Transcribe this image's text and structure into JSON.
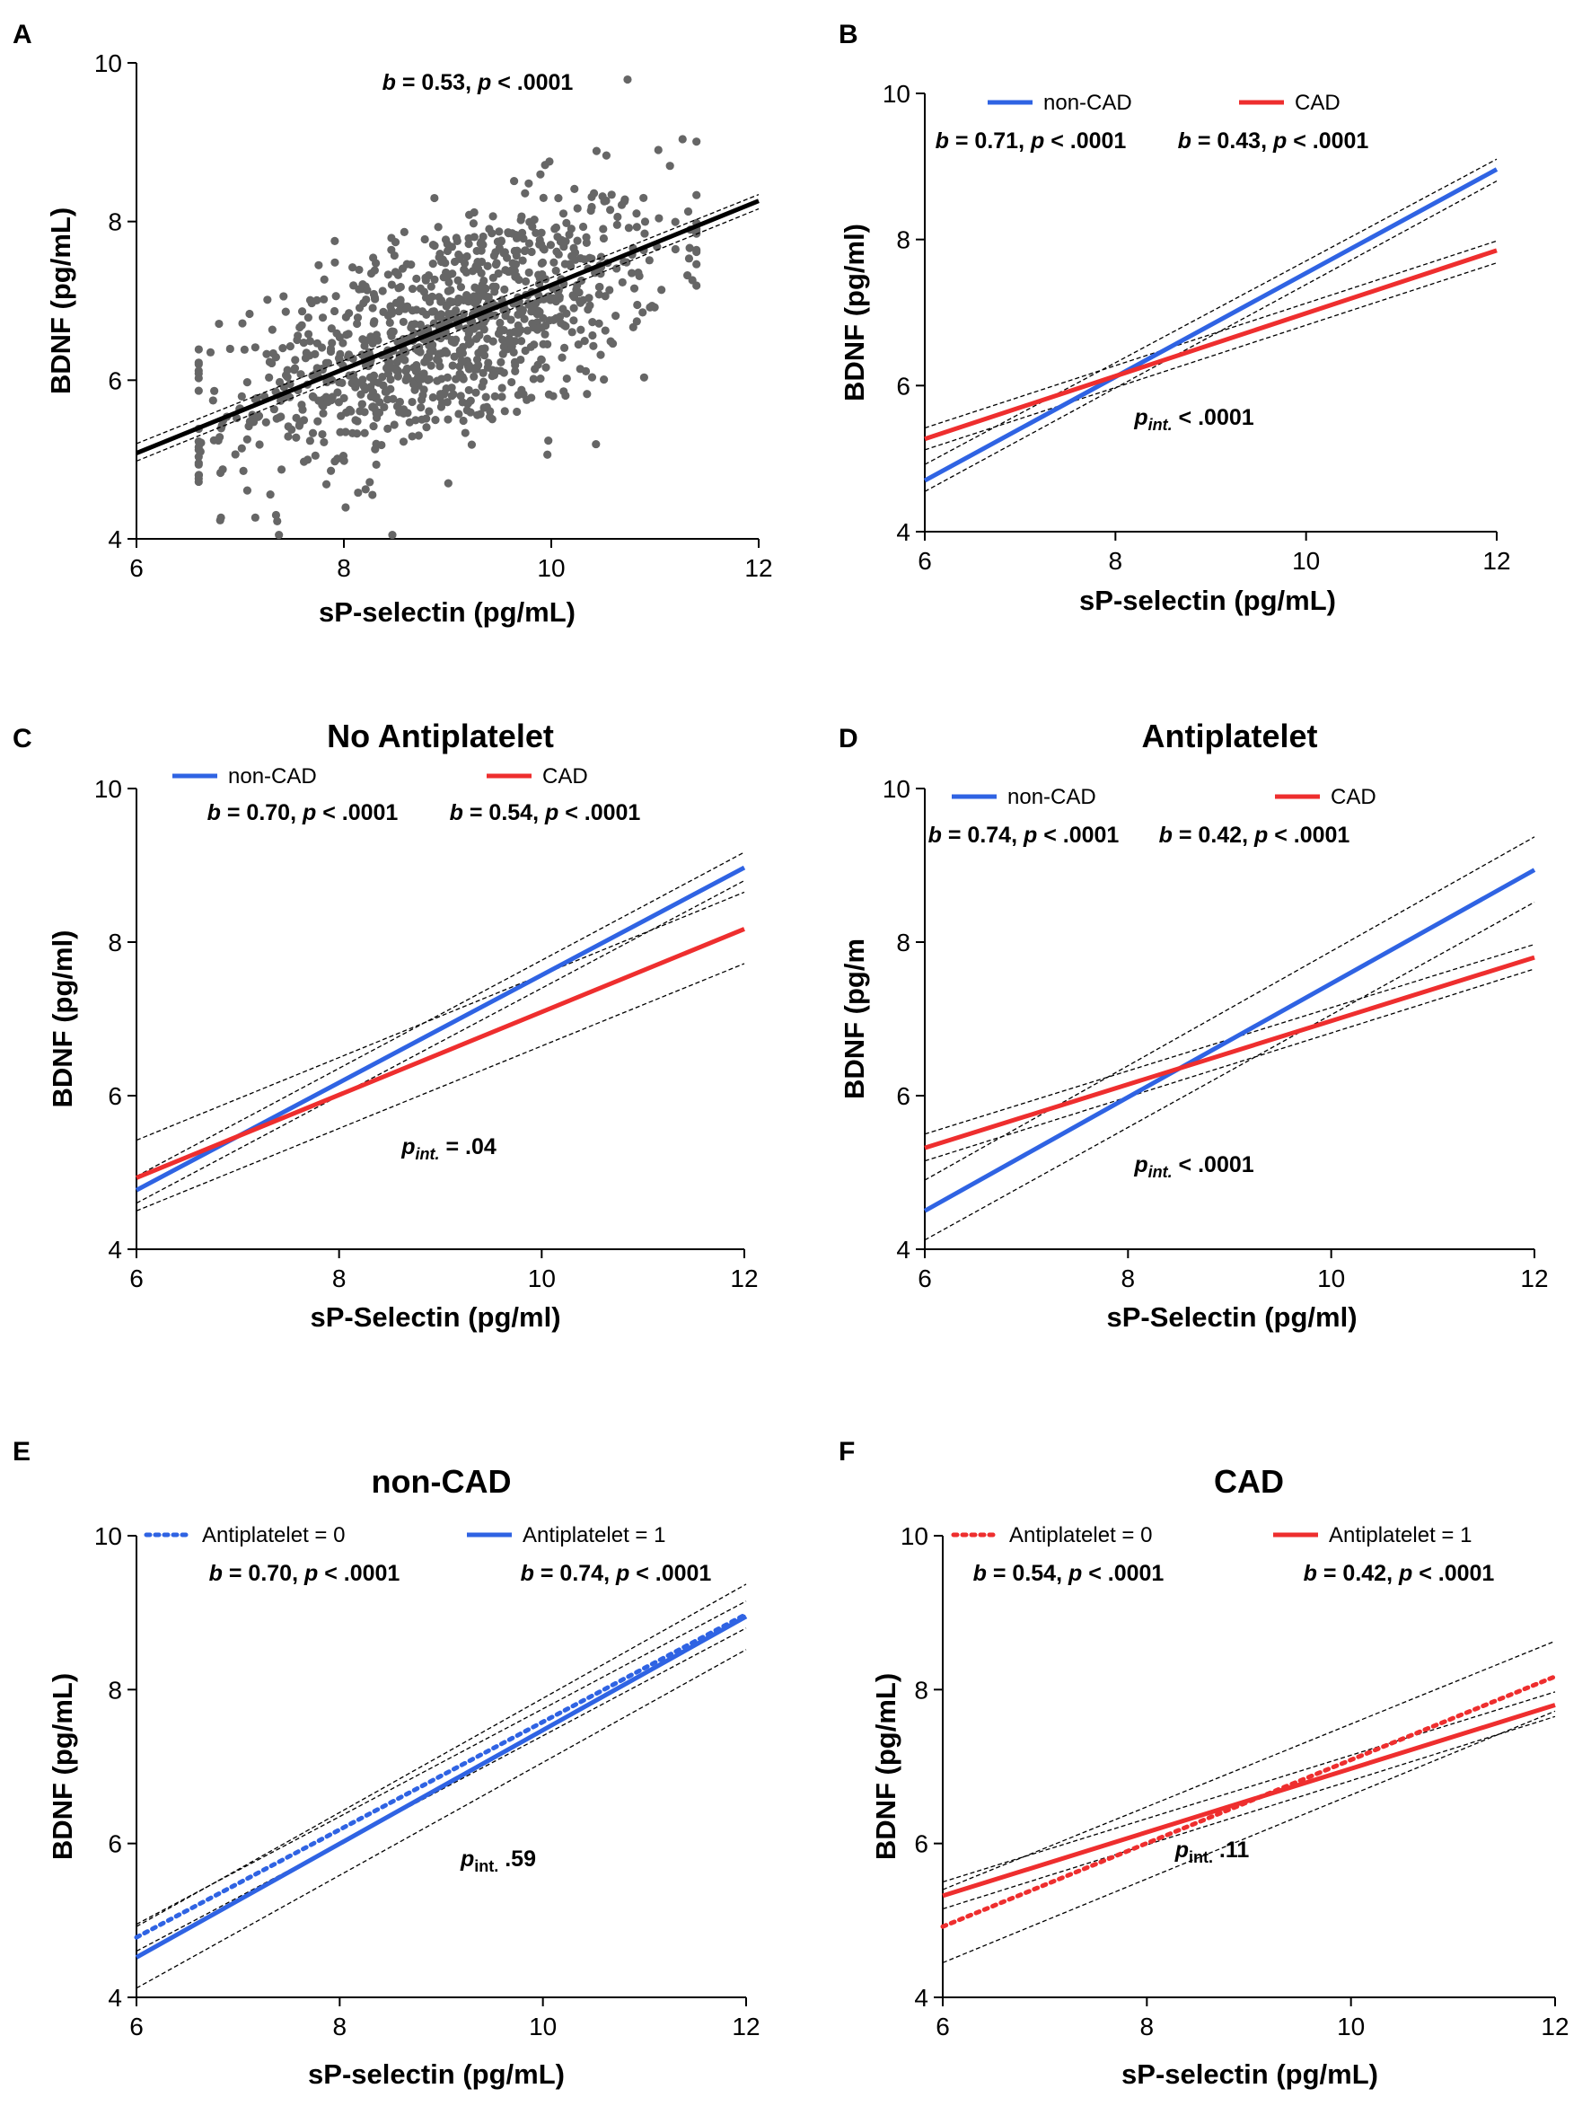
{
  "chart_data": [
    {
      "panel": "A",
      "type": "scatter",
      "title": "",
      "xlabel": "sP-selectin (pg/mL)",
      "ylabel": "BDNF (pg/mL)",
      "xlim": [
        6,
        12
      ],
      "ylim": [
        4,
        10
      ],
      "xticks": [
        "6",
        "8",
        "10",
        "12"
      ],
      "yticks": [
        "4",
        "6",
        "8",
        "10"
      ],
      "stat_b": "b = 0.53",
      "stat_p": "p < .0001",
      "fit": {
        "x": [
          6,
          12
        ],
        "y": [
          5.08,
          8.26
        ],
        "ci_upper": [
          5.2,
          8.34
        ],
        "ci_lower": [
          4.98,
          8.16
        ],
        "color": "#000000"
      },
      "scatter": {
        "n": 1050,
        "x_mean": 9.0,
        "x_sd": 1.05,
        "y_mean": 6.6,
        "y_sd": 0.85,
        "color": "#666666"
      },
      "legend": []
    },
    {
      "panel": "B",
      "type": "line",
      "title": "",
      "xlabel": "sP-selectin (pg/mL)",
      "ylabel": "BDNF (pg/ml)",
      "xlim": [
        6,
        12
      ],
      "ylim": [
        4,
        10
      ],
      "xticks": [
        "6",
        "8",
        "10",
        "12"
      ],
      "yticks": [
        "4",
        "6",
        "8",
        "10"
      ],
      "interaction": "< .0001",
      "series": [
        {
          "name": "non-CAD",
          "stat_b": "b = 0.71",
          "stat_p": "p < .0001",
          "color": "#2f63e3",
          "dash": false,
          "x": [
            6,
            12
          ],
          "y": [
            4.7,
            8.96
          ],
          "ci_upper": [
            4.92,
            9.1
          ],
          "ci_lower": [
            4.55,
            8.8
          ]
        },
        {
          "name": "CAD",
          "stat_b": "b = 0.43",
          "stat_p": "p < .0001",
          "color": "#ee2e2e",
          "dash": false,
          "x": [
            6,
            12
          ],
          "y": [
            5.27,
            7.85
          ],
          "ci_upper": [
            5.42,
            7.98
          ],
          "ci_lower": [
            5.12,
            7.68
          ]
        }
      ]
    },
    {
      "panel": "C",
      "type": "line",
      "title": "No Antiplatelet",
      "xlabel": "sP-Selectin (pg/ml)",
      "ylabel": "BDNF (pg/ml)",
      "xlim": [
        6,
        12
      ],
      "ylim": [
        4,
        10
      ],
      "xticks": [
        "6",
        "8",
        "10",
        "12"
      ],
      "yticks": [
        "4",
        "6",
        "8",
        "10"
      ],
      "interaction": "= .04",
      "series": [
        {
          "name": "non-CAD",
          "stat_b": "b = 0.70",
          "stat_p": "p < .0001",
          "color": "#2f63e3",
          "dash": false,
          "x": [
            6,
            12
          ],
          "y": [
            4.77,
            8.97
          ],
          "ci_upper": [
            4.95,
            9.17
          ],
          "ci_lower": [
            4.6,
            8.8
          ]
        },
        {
          "name": "CAD",
          "stat_b": "b = 0.54",
          "stat_p": "p < .0001",
          "color": "#ee2e2e",
          "dash": false,
          "x": [
            6,
            12
          ],
          "y": [
            4.93,
            8.17
          ],
          "ci_upper": [
            5.42,
            8.65
          ],
          "ci_lower": [
            4.5,
            7.72
          ]
        }
      ]
    },
    {
      "panel": "D",
      "type": "line",
      "title": "Antiplatelet",
      "xlabel": "sP-Selectin (pg/ml)",
      "ylabel": "BDNF (pg/m",
      "xlim": [
        6,
        12
      ],
      "ylim": [
        4,
        10
      ],
      "xticks": [
        "6",
        "8",
        "10",
        "12"
      ],
      "yticks": [
        "4",
        "6",
        "8",
        "10"
      ],
      "interaction": "< .0001",
      "series": [
        {
          "name": "non-CAD",
          "stat_b": "b = 0.74",
          "stat_p": "p < .0001",
          "color": "#2f63e3",
          "dash": false,
          "x": [
            6,
            12
          ],
          "y": [
            4.5,
            8.94
          ],
          "ci_upper": [
            4.9,
            9.37
          ],
          "ci_lower": [
            4.12,
            8.52
          ]
        },
        {
          "name": "CAD",
          "stat_b": "b = 0.42",
          "stat_p": "p < .0001",
          "color": "#ee2e2e",
          "dash": false,
          "x": [
            6,
            12
          ],
          "y": [
            5.32,
            7.8
          ],
          "ci_upper": [
            5.5,
            7.97
          ],
          "ci_lower": [
            5.15,
            7.65
          ]
        }
      ]
    },
    {
      "panel": "E",
      "type": "line",
      "title": "non-CAD",
      "xlabel": "sP-selectin (pg/mL)",
      "ylabel": "BDNF (pg/mL)",
      "xlim": [
        6,
        12
      ],
      "ylim": [
        4,
        10
      ],
      "xticks": [
        "6",
        "8",
        "10",
        "12"
      ],
      "yticks": [
        "4",
        "6",
        "8",
        "10"
      ],
      "interaction": ".59",
      "interaction_sub": "int.",
      "series": [
        {
          "name": "Antiplatelet = 0",
          "stat_b": "b = 0.70",
          "stat_p": "p < .0001",
          "color": "#2f63e3",
          "dash": true,
          "x": [
            6,
            12
          ],
          "y": [
            4.78,
            8.98
          ],
          "ci_upper": [
            4.95,
            9.15
          ],
          "ci_lower": [
            4.6,
            8.8
          ]
        },
        {
          "name": "Antiplatelet = 1",
          "stat_b": "b = 0.74",
          "stat_p": "p < .0001",
          "color": "#2f63e3",
          "dash": false,
          "x": [
            6,
            12
          ],
          "y": [
            4.52,
            8.95
          ],
          "ci_upper": [
            4.92,
            9.37
          ],
          "ci_lower": [
            4.12,
            8.52
          ]
        }
      ]
    },
    {
      "panel": "F",
      "type": "line",
      "title": "CAD",
      "xlabel": "sP-selectin (pg/mL)",
      "ylabel": "BDNF (pg/mL)",
      "xlim": [
        6,
        12
      ],
      "ylim": [
        4,
        10
      ],
      "xticks": [
        "6",
        "8",
        "10",
        "12"
      ],
      "yticks": [
        "4",
        "6",
        "8",
        "10"
      ],
      "interaction": ".11",
      "interaction_sub": "int.",
      "series": [
        {
          "name": "Antiplatelet = 0",
          "stat_b": "b = 0.54",
          "stat_p": "p < .0001",
          "color": "#ee2e2e",
          "dash": true,
          "x": [
            6,
            12
          ],
          "y": [
            4.92,
            8.17
          ],
          "ci_upper": [
            5.4,
            8.63
          ],
          "ci_lower": [
            4.45,
            7.72
          ]
        },
        {
          "name": "Antiplatelet = 1",
          "stat_b": "b = 0.42",
          "stat_p": "p < .0001",
          "color": "#ee2e2e",
          "dash": false,
          "x": [
            6,
            12
          ],
          "y": [
            5.32,
            7.8
          ],
          "ci_upper": [
            5.5,
            7.97
          ],
          "ci_lower": [
            5.15,
            7.65
          ]
        }
      ]
    }
  ]
}
